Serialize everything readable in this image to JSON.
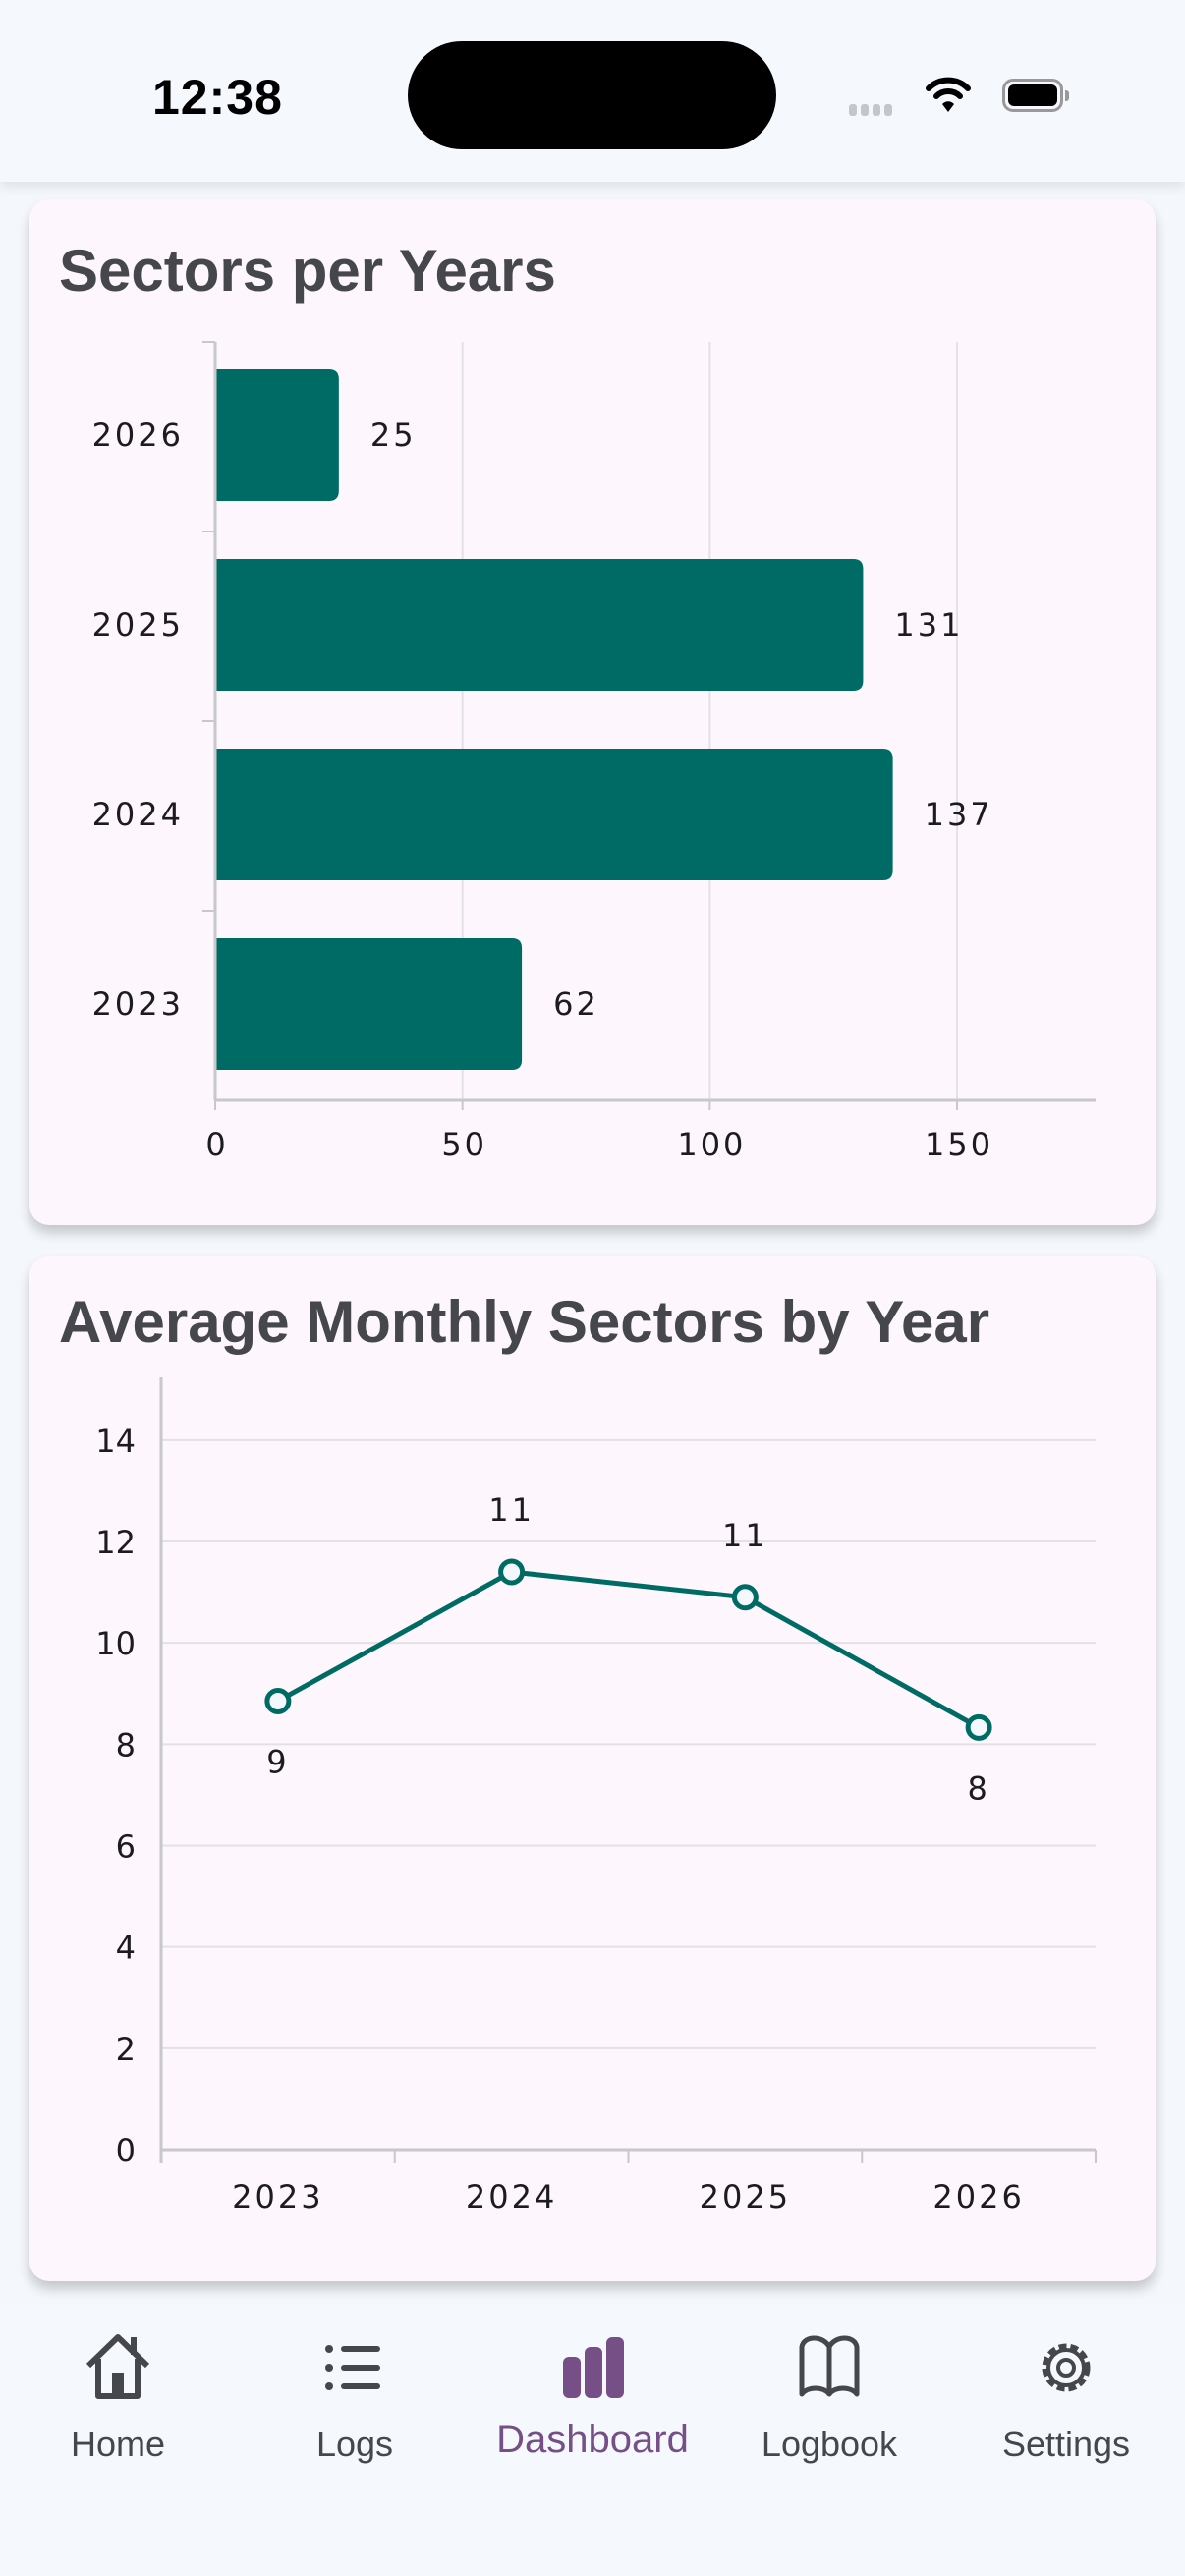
{
  "status_bar": {
    "time": "12:38"
  },
  "cards": [
    {
      "title": "Sectors per Years",
      "chart_data": {
        "type": "bar",
        "orientation": "horizontal",
        "categories": [
          "2026",
          "2025",
          "2024",
          "2023"
        ],
        "values": [
          25,
          131,
          137,
          62
        ],
        "data_labels": [
          "25",
          "131",
          "137",
          "62"
        ],
        "xticks": [
          "0",
          "50",
          "100",
          "150"
        ],
        "xlim": [
          0,
          178
        ],
        "grid": true,
        "color": "#006b64"
      }
    },
    {
      "title": "Average Monthly Sectors by Year",
      "chart_data": {
        "type": "line",
        "categories": [
          "2023",
          "2024",
          "2025",
          "2026"
        ],
        "values": [
          8.85,
          11.4,
          10.9,
          8.33
        ],
        "data_labels": [
          "9",
          "11",
          "11",
          "8"
        ],
        "yticks": [
          "0",
          "2",
          "4",
          "6",
          "8",
          "10",
          "12",
          "14"
        ],
        "ylim": [
          0,
          14.85
        ],
        "grid": true,
        "color": "#006b64"
      }
    }
  ],
  "nav": {
    "items": [
      {
        "label": "Home",
        "icon": "home-icon"
      },
      {
        "label": "Logs",
        "icon": "list-icon"
      },
      {
        "label": "Dashboard",
        "icon": "bar-chart-icon",
        "active": true
      },
      {
        "label": "Logbook",
        "icon": "book-icon"
      },
      {
        "label": "Settings",
        "icon": "gear-icon"
      }
    ],
    "active_color": "#754f86",
    "inactive_color": "#45474c"
  }
}
